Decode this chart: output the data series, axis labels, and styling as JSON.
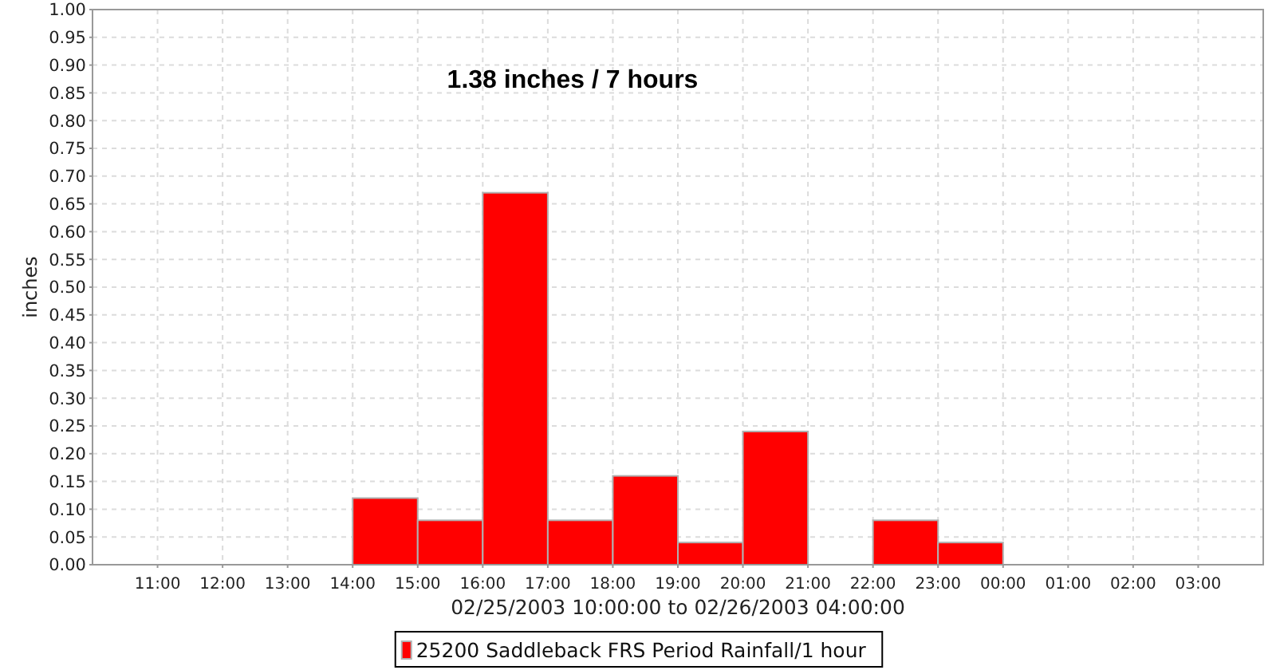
{
  "chart_data": {
    "type": "histogram",
    "annotations": [
      "1.38 inches / 7 hours"
    ],
    "xlabel": "02/25/2003 10:00:00 to 02/26/2003 04:00:00",
    "ylabel": "inches",
    "bins": [
      "2003-02-25T14:00",
      "2003-02-25T15:00",
      "2003-02-25T16:00",
      "2003-02-25T17:00",
      "2003-02-25T18:00",
      "2003-02-25T19:00",
      "2003-02-25T20:00",
      "2003-02-25T21:00",
      "2003-02-25T22:00",
      "2003-02-25T23:00",
      "2003-02-26T00:00"
    ],
    "series": [
      {
        "name": "25200 Saddleback FRS Period Rainfall/1 hour",
        "color": "#ff0000",
        "values": [
          0.12,
          0.08,
          0.67,
          0.08,
          0.16,
          0.04,
          0.24,
          0,
          0.08,
          0.04
        ]
      }
    ],
    "xlim": [
      "2003-02-25T10:00",
      "2003-02-26T04:00"
    ],
    "xticks": [
      {
        "value": "2003-02-25T11:00",
        "label": "11:00"
      },
      {
        "value": "2003-02-25T12:00",
        "label": "12:00"
      },
      {
        "value": "2003-02-25T13:00",
        "label": "13:00"
      },
      {
        "value": "2003-02-25T14:00",
        "label": "14:00"
      },
      {
        "value": "2003-02-25T15:00",
        "label": "15:00"
      },
      {
        "value": "2003-02-25T16:00",
        "label": "16:00"
      },
      {
        "value": "2003-02-25T17:00",
        "label": "17:00"
      },
      {
        "value": "2003-02-25T18:00",
        "label": "18:00"
      },
      {
        "value": "2003-02-25T19:00",
        "label": "19:00"
      },
      {
        "value": "2003-02-25T20:00",
        "label": "20:00"
      },
      {
        "value": "2003-02-25T21:00",
        "label": "21:00"
      },
      {
        "value": "2003-02-25T22:00",
        "label": "22:00"
      },
      {
        "value": "2003-02-25T23:00",
        "label": "23:00"
      },
      {
        "value": "2003-02-26T00:00",
        "label": "00:00"
      },
      {
        "value": "2003-02-26T01:00",
        "label": "01:00"
      },
      {
        "value": "2003-02-26T02:00",
        "label": "02:00"
      },
      {
        "value": "2003-02-26T03:00",
        "label": "03:00"
      }
    ],
    "ylim": [
      0,
      1
    ],
    "yticks": [
      {
        "value": 0,
        "label": "0.00"
      },
      {
        "value": 0.05,
        "label": "0.05"
      },
      {
        "value": 0.1,
        "label": "0.10"
      },
      {
        "value": 0.15,
        "label": "0.15"
      },
      {
        "value": 0.2,
        "label": "0.20"
      },
      {
        "value": 0.25,
        "label": "0.25"
      },
      {
        "value": 0.3,
        "label": "0.30"
      },
      {
        "value": 0.35,
        "label": "0.35"
      },
      {
        "value": 0.4,
        "label": "0.40"
      },
      {
        "value": 0.45,
        "label": "0.45"
      },
      {
        "value": 0.5,
        "label": "0.50"
      },
      {
        "value": 0.55,
        "label": "0.55"
      },
      {
        "value": 0.6,
        "label": "0.60"
      },
      {
        "value": 0.65,
        "label": "0.65"
      },
      {
        "value": 0.7,
        "label": "0.70"
      },
      {
        "value": 0.75,
        "label": "0.75"
      },
      {
        "value": 0.8,
        "label": "0.80"
      },
      {
        "value": 0.85,
        "label": "0.85"
      },
      {
        "value": 0.9,
        "label": "0.90"
      },
      {
        "value": 0.95,
        "label": "0.95"
      },
      {
        "value": 1,
        "label": "1.00"
      }
    ],
    "grid": true,
    "legend": "bottom"
  }
}
